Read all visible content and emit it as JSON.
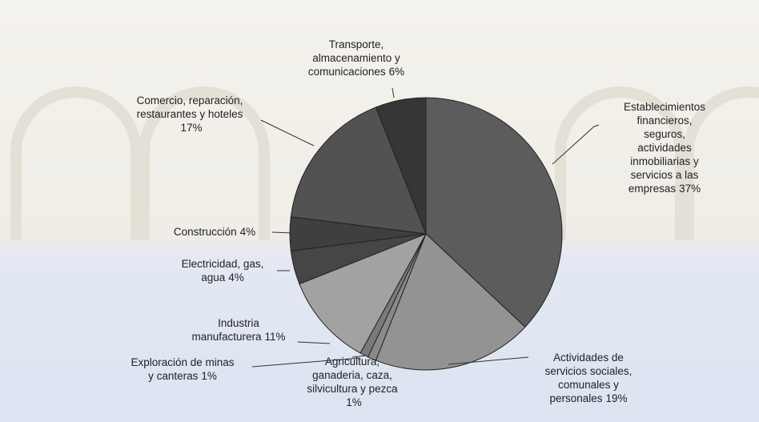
{
  "chart_data": {
    "type": "pie",
    "categories": [
      "Establecimientos\nfinancieros, seguros,\nactividades\ninmobiliarias y\nservicios a las\nempresas",
      "Actividades de\nservicios sociales,\ncomunales y\npersonales",
      "Agricultura,\nganaderia, caza,\nsilvicultura y pezca\n",
      "Exploración de minas\ny canteras",
      "Industria\nmanufacturera",
      "Electricidad, gas,\nagua",
      "Construcción",
      "Comercio, reparación,\nrestaurantes y hoteles\n",
      "Transporte,\nalmacenamiento y\ncomunicaciones"
    ],
    "values": [
      37,
      19,
      1,
      1,
      11,
      4,
      4,
      17,
      6
    ],
    "value_labels": [
      "37%",
      "19%",
      "1%",
      "1%",
      "11%",
      "4%",
      "4%",
      "17%",
      "6%"
    ],
    "colors": [
      "#5c5c5c",
      "#939393",
      "#8a8a8a",
      "#7a7a7a",
      "#a2a2a2",
      "#464646",
      "#3f3f3f",
      "#525252",
      "#363636"
    ]
  }
}
